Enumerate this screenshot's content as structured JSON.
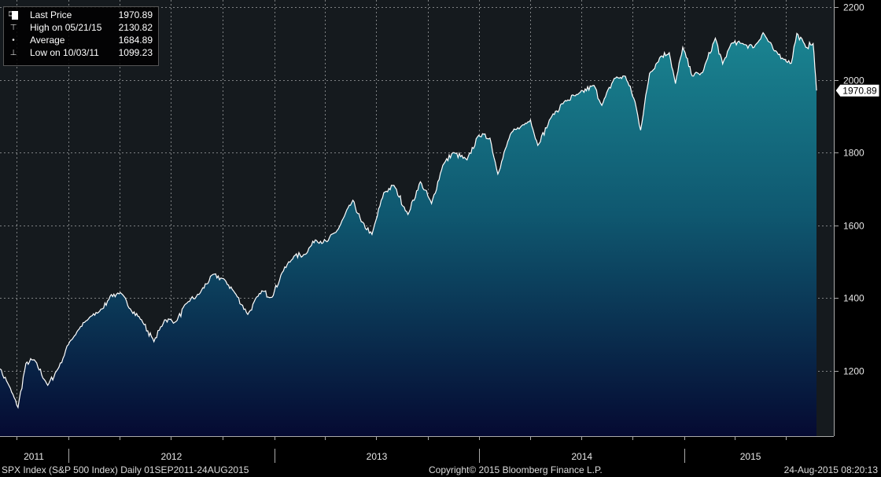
{
  "legend": {
    "items": [
      {
        "icon": "square-icon",
        "label": "Last Price",
        "value": "1970.89"
      },
      {
        "icon": "high-marker-icon",
        "label": "High on 05/21/15",
        "value": "2130.82"
      },
      {
        "icon": "average-marker-icon",
        "label": "Average",
        "value": "1684.89"
      },
      {
        "icon": "low-marker-icon",
        "label": "Low on 10/03/11",
        "value": "1099.23"
      }
    ]
  },
  "footer": {
    "left": "SPX Index (S&P 500 Index)  Daily 01SEP2011-24AUG2015",
    "center": "Copyright© 2015 Bloomberg Finance L.P.",
    "right": "24-Aug-2015 08:20:13"
  },
  "colors": {
    "background": "#151a1e",
    "area_top": "#1a8491",
    "area_bottom": "#050a32",
    "line": "#ffffff"
  },
  "chart_data": {
    "type": "area",
    "ylim": [
      1020,
      2220
    ],
    "yticks": [
      1200,
      1400,
      1600,
      1800,
      2000,
      2200
    ],
    "year_labels": [
      "2011",
      "2012",
      "2013",
      "2014",
      "2015"
    ],
    "x_start": "2011-09-01",
    "x_end": "2015-08-24",
    "last_value_label": "1970.89",
    "x": [
      "2011-09-01",
      "2011-09-15",
      "2011-10-03",
      "2011-10-17",
      "2011-11-01",
      "2011-11-25",
      "2011-12-15",
      "2012-01-03",
      "2012-01-20",
      "2012-02-10",
      "2012-03-01",
      "2012-03-15",
      "2012-04-02",
      "2012-04-20",
      "2012-05-10",
      "2012-06-01",
      "2012-06-20",
      "2012-07-10",
      "2012-08-01",
      "2012-08-20",
      "2012-09-14",
      "2012-10-05",
      "2012-10-25",
      "2012-11-15",
      "2012-12-10",
      "2012-12-28",
      "2013-01-15",
      "2013-02-05",
      "2013-02-25",
      "2013-03-15",
      "2013-04-05",
      "2013-04-25",
      "2013-05-21",
      "2013-06-05",
      "2013-06-24",
      "2013-07-15",
      "2013-08-02",
      "2013-08-27",
      "2013-09-18",
      "2013-10-08",
      "2013-10-28",
      "2013-11-15",
      "2013-12-10",
      "2013-12-31",
      "2014-01-20",
      "2014-02-03",
      "2014-02-25",
      "2014-03-15",
      "2014-04-02",
      "2014-04-15",
      "2014-05-10",
      "2014-06-01",
      "2014-06-25",
      "2014-07-24",
      "2014-08-07",
      "2014-08-29",
      "2014-09-18",
      "2014-10-05",
      "2014-10-15",
      "2014-10-31",
      "2014-11-20",
      "2014-12-05",
      "2014-12-16",
      "2014-12-29",
      "2015-01-15",
      "2015-02-02",
      "2015-02-25",
      "2015-03-10",
      "2015-03-25",
      "2015-04-15",
      "2015-05-05",
      "2015-05-21",
      "2015-06-10",
      "2015-06-29",
      "2015-07-10",
      "2015-07-20",
      "2015-08-05",
      "2015-08-18",
      "2015-08-21",
      "2015-08-24"
    ],
    "values": [
      1205,
      1165,
      1099,
      1220,
      1230,
      1160,
      1210,
      1280,
      1315,
      1350,
      1370,
      1405,
      1415,
      1370,
      1340,
      1280,
      1340,
      1335,
      1390,
      1410,
      1465,
      1450,
      1410,
      1355,
      1420,
      1402,
      1470,
      1515,
      1520,
      1560,
      1555,
      1590,
      1669,
      1610,
      1575,
      1690,
      1710,
      1630,
      1720,
      1660,
      1765,
      1800,
      1780,
      1848,
      1840,
      1741,
      1850,
      1870,
      1890,
      1820,
      1900,
      1940,
      1960,
      1985,
      1930,
      2004,
      2010,
      1940,
      1862,
      2018,
      2065,
      2075,
      1990,
      2090,
      2011,
      2020,
      2115,
      2044,
      2100,
      2100,
      2090,
      2130,
      2080,
      2057,
      2046,
      2128,
      2090,
      2100,
      2035,
      1970.89
    ]
  }
}
